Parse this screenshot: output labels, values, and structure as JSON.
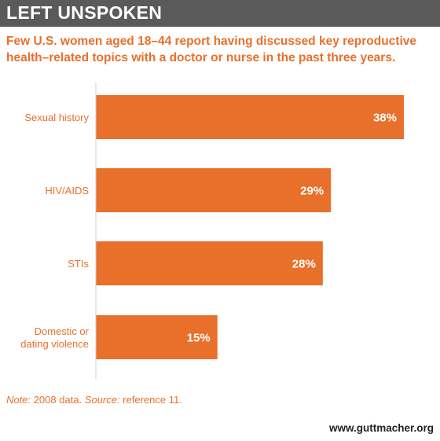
{
  "header": {
    "title": "LEFT UNSPOKEN",
    "subtitle": "Few U.S. women aged 18–44 report having discussed key reproductive health–related topics with a doctor or nurse in the past three years."
  },
  "chart_data": {
    "type": "bar",
    "orientation": "horizontal",
    "title": "LEFT UNSPOKEN",
    "subtitle": "Few U.S. women aged 18–44 report having discussed key reproductive health–related topics with a doctor or nurse in the past three years.",
    "categories": [
      "Sexual history",
      "HIV/AIDS",
      "STIs",
      "Domestic or dating violence"
    ],
    "values": [
      38,
      29,
      28,
      15
    ],
    "data_labels": [
      "38%",
      "29%",
      "28%",
      "15%"
    ],
    "xlabel": "",
    "ylabel": "",
    "xlim": [
      0,
      40
    ],
    "grid": false,
    "bar_color": "#e8702a",
    "label_color": "#e8702a"
  },
  "footer": {
    "note_label": "Note:",
    "note_text": " 2008 data. ",
    "source_label": "Source:",
    "source_text": " reference 11.",
    "site": "www.guttmacher.org"
  },
  "colors": {
    "accent": "#e8702a",
    "header_bg": "#5a5a5a"
  }
}
